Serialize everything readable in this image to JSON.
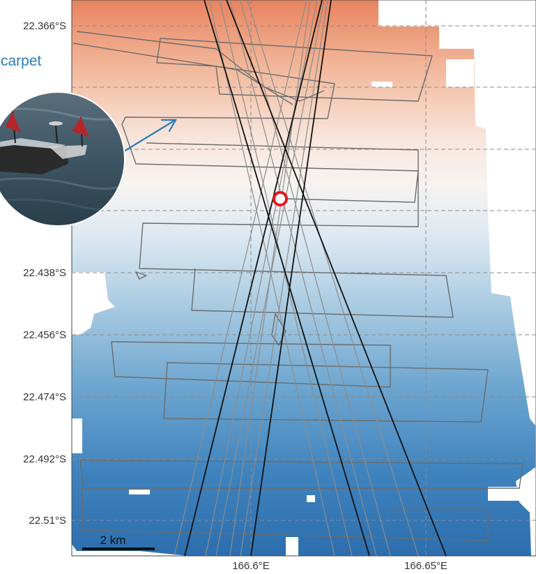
{
  "map": {
    "lat_labels": [
      "22.366°S",
      "22.438°S",
      "22.456°S",
      "22.474°S",
      "22.492°S",
      "22.51°S"
    ],
    "lon_labels": [
      "166.6°E",
      "166.65°E"
    ],
    "scale_bar": "2 km",
    "colormap": {
      "warm": "#e9805f",
      "mid": "#f7f3f0",
      "cool": "#2f71b2"
    },
    "marker_color": "#e8141a",
    "grid": true
  },
  "inset": {
    "label": "carpet",
    "arrow_color": "#2a7db9",
    "photo": "drifting-carpet-float-with-flags"
  }
}
